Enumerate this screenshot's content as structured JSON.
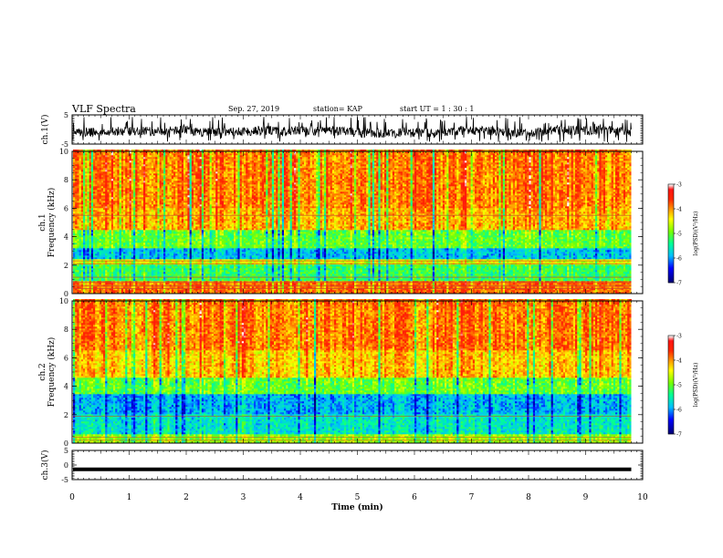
{
  "header": {
    "title": "VLF Spectra",
    "date": "Sep. 27, 2019",
    "station": "station= KAP",
    "start": "start  UT =   1 : 30 : 1"
  },
  "chart_data": [
    {
      "type": "line",
      "name": "ch1-waveform",
      "ylabel": "ch.1(V)",
      "ylim": [
        -5,
        5
      ],
      "yticks": [
        "5",
        "-5"
      ],
      "xlim": [
        0,
        10
      ],
      "x_end_min": 9.8
    },
    {
      "type": "heatmap",
      "name": "ch1-spectrogram",
      "ylabel": "ch.1\nFrequency (kHz)",
      "ylim": [
        0,
        10
      ],
      "yticks": [
        "0",
        "2",
        "4",
        "6",
        "8",
        "10"
      ],
      "xlim": [
        0,
        10
      ],
      "x_end_min": 9.8,
      "bands_kHz": [
        {
          "from": 0,
          "to": 0.8,
          "level": -3.8
        },
        {
          "from": 0.8,
          "to": 2.0,
          "level": -5.2
        },
        {
          "from": 2.0,
          "to": 2.4,
          "level": -4.5
        },
        {
          "from": 2.4,
          "to": 3.2,
          "level": -5.8
        },
        {
          "from": 3.2,
          "to": 4.4,
          "level": -5.0
        },
        {
          "from": 4.4,
          "to": 6.0,
          "level": -4.1
        },
        {
          "from": 6.0,
          "to": 10.0,
          "level": -3.9
        }
      ],
      "colorbar": {
        "label": "log(PSD)(V²/Hz)",
        "min": -7,
        "max": -3,
        "ticks": [
          "-3",
          "-4",
          "-5",
          "-6",
          "-7"
        ]
      }
    },
    {
      "type": "heatmap",
      "name": "ch2-spectrogram",
      "ylabel": "ch.2\nFrequency (kHz)",
      "ylim": [
        0,
        10
      ],
      "yticks": [
        "0",
        "2",
        "4",
        "6",
        "8",
        "10"
      ],
      "xlim": [
        0,
        10
      ],
      "x_end_min": 9.8,
      "bands_kHz": [
        {
          "from": 0,
          "to": 0.6,
          "level": -4.8
        },
        {
          "from": 0.6,
          "to": 2.0,
          "level": -5.6
        },
        {
          "from": 2.0,
          "to": 3.4,
          "level": -5.9
        },
        {
          "from": 3.4,
          "to": 4.6,
          "level": -5.0
        },
        {
          "from": 4.6,
          "to": 6.5,
          "level": -4.2
        },
        {
          "from": 6.5,
          "to": 10.0,
          "level": -3.9
        }
      ],
      "colorbar": {
        "label": "log(PSD)(V²/Hz)",
        "min": -7,
        "max": -3,
        "ticks": [
          "-3",
          "-4",
          "-5",
          "-6",
          "-7"
        ]
      }
    },
    {
      "type": "line",
      "name": "ch3-waveform",
      "ylabel": "ch.3(V)",
      "ylim": [
        -5,
        5
      ],
      "yticks": [
        "5",
        "0",
        "-5"
      ],
      "xlim": [
        0,
        10
      ],
      "x_end_min": 9.8,
      "constant_value": -1.5
    }
  ],
  "xaxis": {
    "label": "Time  (min)",
    "ticks": [
      "0",
      "1",
      "2",
      "3",
      "4",
      "5",
      "6",
      "7",
      "8",
      "9",
      "10"
    ]
  },
  "colors": {
    "waveform": "#000000",
    "colormap": [
      "#000080",
      "#0000ff",
      "#00c8ff",
      "#00ff80",
      "#a0ff00",
      "#ffff00",
      "#ff8000",
      "#ff0000",
      "#ff3030",
      "#ffffff"
    ]
  }
}
